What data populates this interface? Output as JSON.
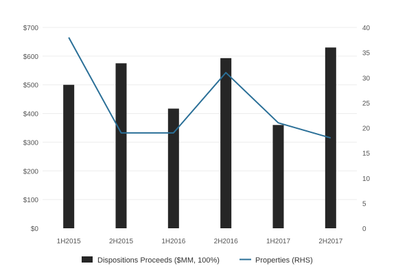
{
  "chart_data": {
    "type": "bar",
    "categories": [
      "1H2015",
      "2H2015",
      "1H2016",
      "2H2016",
      "1H2017",
      "2H2017"
    ],
    "series": [
      {
        "name": "Dispositions Proceeds ($MM, 100%)",
        "type": "bar",
        "axis": "left",
        "color": "#262626",
        "values": [
          500,
          575,
          417,
          593,
          360,
          630
        ]
      },
      {
        "name": "Properties (RHS)",
        "type": "line",
        "axis": "right",
        "color": "#2a6f97",
        "values": [
          38,
          19,
          19,
          31,
          21,
          18
        ]
      }
    ],
    "y_left": {
      "ylim": [
        0,
        700
      ],
      "ticks": [
        0,
        100,
        200,
        300,
        400,
        500,
        600,
        700
      ],
      "tick_labels": [
        "$0",
        "$100",
        "$200",
        "$300",
        "$400",
        "$500",
        "$600",
        "$700"
      ]
    },
    "y_right": {
      "ylim": [
        0,
        40
      ],
      "ticks": [
        0,
        5,
        10,
        15,
        20,
        25,
        30,
        35,
        40
      ],
      "tick_labels": [
        "0",
        "5",
        "10",
        "15",
        "20",
        "25",
        "30",
        "35",
        "40"
      ]
    },
    "grid": true,
    "legend_position": "bottom"
  }
}
